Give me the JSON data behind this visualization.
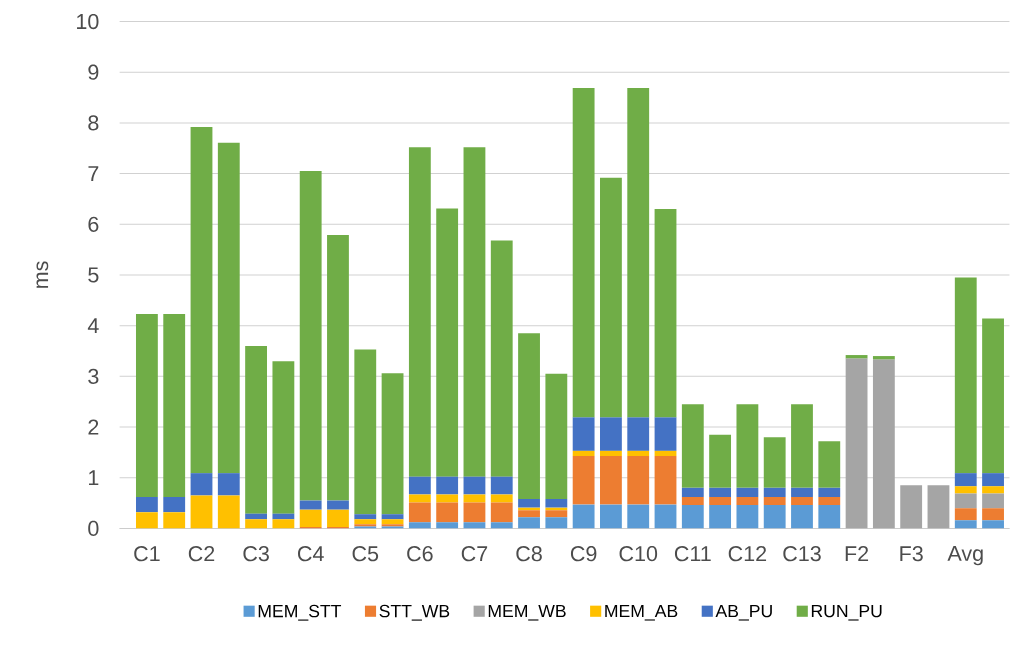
{
  "chart_data": {
    "type": "bar",
    "stacked": true,
    "ylabel": "ms",
    "categories": [
      "C1",
      null,
      "C2",
      null,
      "C3",
      null,
      "C4",
      null,
      "C5",
      null,
      "C6",
      null,
      "C7",
      null,
      "C8",
      null,
      "C9",
      null,
      "C10",
      null,
      "C11",
      null,
      "C12",
      null,
      "C13",
      null,
      "F2",
      null,
      "F3",
      null,
      "Avg",
      null
    ],
    "ylim": [
      0,
      10
    ],
    "yticks": [
      0,
      1,
      2,
      3,
      4,
      5,
      6,
      7,
      8,
      9,
      10
    ],
    "grid": "y",
    "legend": "bottom",
    "series": [
      {
        "name": "MEM_STT",
        "color": "#5b9bd5",
        "values": [
          0,
          0,
          0,
          0,
          0,
          0,
          0,
          0,
          0.04,
          0.04,
          0.12,
          0.12,
          0.12,
          0.12,
          0.22,
          0.22,
          0.47,
          0.47,
          0.47,
          0.47,
          0.46,
          0.46,
          0.46,
          0.46,
          0.46,
          0.46,
          0,
          0,
          0,
          0,
          0.16,
          0.16
        ]
      },
      {
        "name": "STT_WB",
        "color": "#ed7d31",
        "values": [
          0,
          0,
          0,
          0,
          0,
          0,
          0.03,
          0.03,
          0.04,
          0.04,
          0.39,
          0.39,
          0.39,
          0.39,
          0.14,
          0.14,
          0.96,
          0.96,
          0.96,
          0.96,
          0.16,
          0.16,
          0.16,
          0.16,
          0.16,
          0.16,
          0,
          0,
          0,
          0,
          0.24,
          0.24
        ]
      },
      {
        "name": "MEM_WB",
        "color": "#a5a5a5",
        "values": [
          0,
          0,
          0,
          0,
          0,
          0,
          0,
          0,
          0,
          0,
          0,
          0,
          0,
          0,
          0,
          0,
          0,
          0,
          0,
          0,
          0,
          0,
          0,
          0,
          0,
          0,
          3.35,
          3.33,
          0.85,
          0.85,
          0.29,
          0.29
        ]
      },
      {
        "name": "MEM_AB",
        "color": "#ffc000",
        "values": [
          0.32,
          0.32,
          0.65,
          0.65,
          0.18,
          0.18,
          0.34,
          0.34,
          0.1,
          0.1,
          0.16,
          0.16,
          0.16,
          0.16,
          0.05,
          0.05,
          0.1,
          0.1,
          0.1,
          0.1,
          0,
          0,
          0,
          0,
          0,
          0,
          0,
          0,
          0,
          0,
          0.14,
          0.14
        ]
      },
      {
        "name": "AB_PU",
        "color": "#4472c4",
        "values": [
          0.3,
          0.3,
          0.44,
          0.44,
          0.11,
          0.11,
          0.18,
          0.18,
          0.1,
          0.1,
          0.35,
          0.35,
          0.35,
          0.35,
          0.17,
          0.17,
          0.66,
          0.66,
          0.66,
          0.66,
          0.18,
          0.18,
          0.18,
          0.18,
          0.18,
          0.18,
          0,
          0,
          0,
          0,
          0.26,
          0.26
        ]
      },
      {
        "name": "RUN_PU",
        "color": "#70ad47",
        "values": [
          3.61,
          3.61,
          6.83,
          6.52,
          3.31,
          3.01,
          6.5,
          5.24,
          3.25,
          2.78,
          6.5,
          5.29,
          6.5,
          4.66,
          3.27,
          2.47,
          6.5,
          4.73,
          6.5,
          4.11,
          1.65,
          1.05,
          1.65,
          1.0,
          1.65,
          0.92,
          0.07,
          0.07,
          0,
          0,
          3.86,
          3.05
        ]
      }
    ]
  }
}
